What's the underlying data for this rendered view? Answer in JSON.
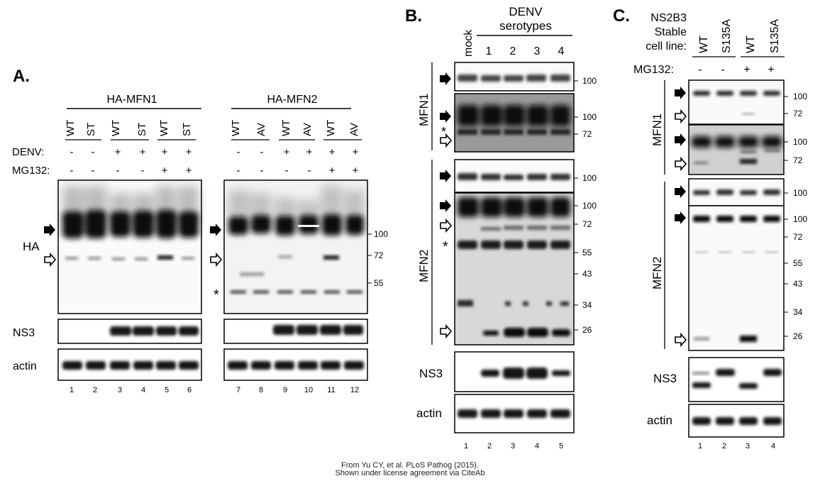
{
  "panel_a": {
    "letter": "A.",
    "mfn1_title": "HA-MFN1",
    "mfn2_title": "HA-MFN2",
    "mfn1_constructs": [
      "WT",
      "ST",
      "WT",
      "ST",
      "WT",
      "ST"
    ],
    "mfn2_constructs": [
      "WT",
      "AV",
      "WT",
      "AV",
      "WT",
      "AV"
    ],
    "row_labels": {
      "denv": "DENV:",
      "mg132": "MG132:"
    },
    "denv_signs": [
      "-",
      "-",
      "+",
      "+",
      "+",
      "+"
    ],
    "mg132_signs": [
      "-",
      "-",
      "-",
      "-",
      "+",
      "+"
    ],
    "blot_labels": {
      "ha": "HA",
      "ns3": "NS3",
      "actin": "actin"
    },
    "markers": [
      "100",
      "72",
      "55"
    ],
    "asterisk": "*",
    "lanes_left": [
      "1",
      "2",
      "3",
      "4",
      "5",
      "6"
    ],
    "lanes_right": [
      "7",
      "8",
      "9",
      "10",
      "11",
      "12"
    ]
  },
  "panel_b": {
    "letter": "B.",
    "mock": "mock",
    "group_title_1": "DENV",
    "group_title_2": "serotypes",
    "serotypes": [
      "1",
      "2",
      "3",
      "4"
    ],
    "mfn1_label": "MFN1",
    "mfn2_label": "MFN2",
    "ns3_label": "NS3",
    "actin_label": "actin",
    "mfn1_markers": [
      "100",
      "100",
      "72"
    ],
    "mfn2_markers": [
      "100",
      "100",
      "72",
      "55",
      "43",
      "34",
      "26"
    ],
    "asterisk": "*",
    "lanes": [
      "1",
      "2",
      "3",
      "4",
      "5"
    ]
  },
  "panel_c": {
    "letter": "C.",
    "cell_line_1": "NS2B3",
    "cell_line_2": "Stable",
    "cell_line_3": "cell line:",
    "constructs": [
      "WT",
      "S135A",
      "WT",
      "S135A"
    ],
    "mg132_label": "MG132:",
    "mg132_signs": [
      "-",
      "-",
      "+",
      "+"
    ],
    "mfn1_label": "MFN1",
    "mfn2_label": "MFN2",
    "ns3_label": "NS3",
    "actin_label": "actin",
    "mfn1_markers": [
      "100",
      "72",
      "100",
      "72"
    ],
    "mfn2_markers": [
      "100",
      "100",
      "72",
      "55",
      "43",
      "34",
      "26"
    ],
    "lanes": [
      "1",
      "2",
      "3",
      "4"
    ]
  },
  "credit": {
    "line1": "From Yu CY, et al. PLoS Pathog (2015).",
    "line2": "Shown under license agreement via CiteAb"
  }
}
